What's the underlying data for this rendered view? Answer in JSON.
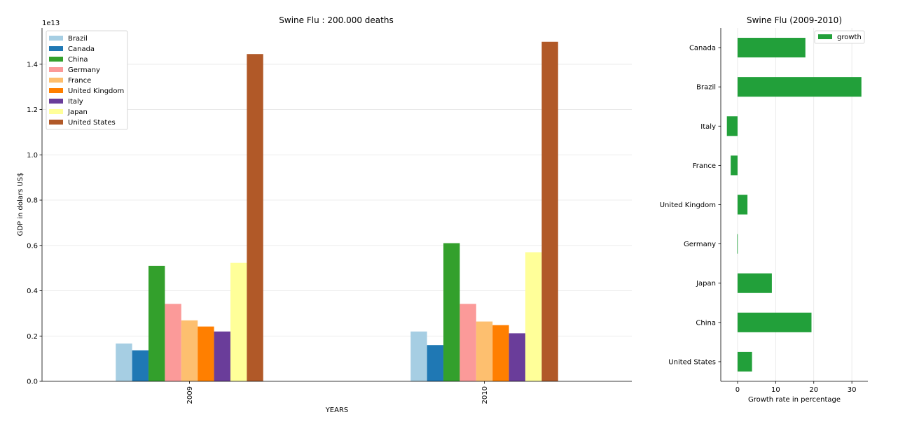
{
  "chart_data": [
    {
      "type": "bar",
      "title": "Swine Flu : 200.000 deaths",
      "xlabel": "YEARS",
      "ylabel": "GDP in dolars US$",
      "y_offset_label": "1e13",
      "ylim": [
        0,
        1.56
      ],
      "yticks": [
        0.0,
        0.2,
        0.4,
        0.6,
        0.8,
        1.0,
        1.2,
        1.4
      ],
      "grid": "horizontal",
      "legend_position": "top-left",
      "categories": [
        "2009",
        "2010"
      ],
      "series": [
        {
          "name": "Brazil",
          "color": "#a6cee3",
          "values": [
            0.167,
            0.22
          ]
        },
        {
          "name": "Canada",
          "color": "#1f78b4",
          "values": [
            0.137,
            0.16
          ]
        },
        {
          "name": "China",
          "color": "#33a02c",
          "values": [
            0.51,
            0.61
          ]
        },
        {
          "name": "Germany",
          "color": "#fb9a99",
          "values": [
            0.342,
            0.342
          ]
        },
        {
          "name": "France",
          "color": "#fdbf6f",
          "values": [
            0.269,
            0.264
          ]
        },
        {
          "name": "United Kingdom",
          "color": "#ff7f00",
          "values": [
            0.242,
            0.248
          ]
        },
        {
          "name": "Italy",
          "color": "#6a3d9a",
          "values": [
            0.22,
            0.212
          ]
        },
        {
          "name": "Japan",
          "color": "#ffff99",
          "values": [
            0.523,
            0.57
          ]
        },
        {
          "name": "United States",
          "color": "#b15928",
          "values": [
            1.445,
            1.499
          ]
        }
      ]
    },
    {
      "type": "bar",
      "orientation": "horizontal",
      "title": "Swine Flu (2009-2010)",
      "xlabel": "Growth rate in percentage",
      "ylabel": "",
      "xlim": [
        -4.4,
        34.2
      ],
      "xticks": [
        0,
        10,
        20,
        30
      ],
      "grid": "vertical",
      "legend_position": "top-right",
      "categories": [
        "Canada",
        "Brazil",
        "Italy",
        "France",
        "United Kingdom",
        "Germany",
        "Japan",
        "China",
        "United States"
      ],
      "series": [
        {
          "name": "growth",
          "color": "#22a03a",
          "values": [
            17.8,
            32.5,
            -2.8,
            -1.8,
            2.6,
            -0.1,
            9.0,
            19.4,
            3.8
          ]
        }
      ]
    }
  ]
}
